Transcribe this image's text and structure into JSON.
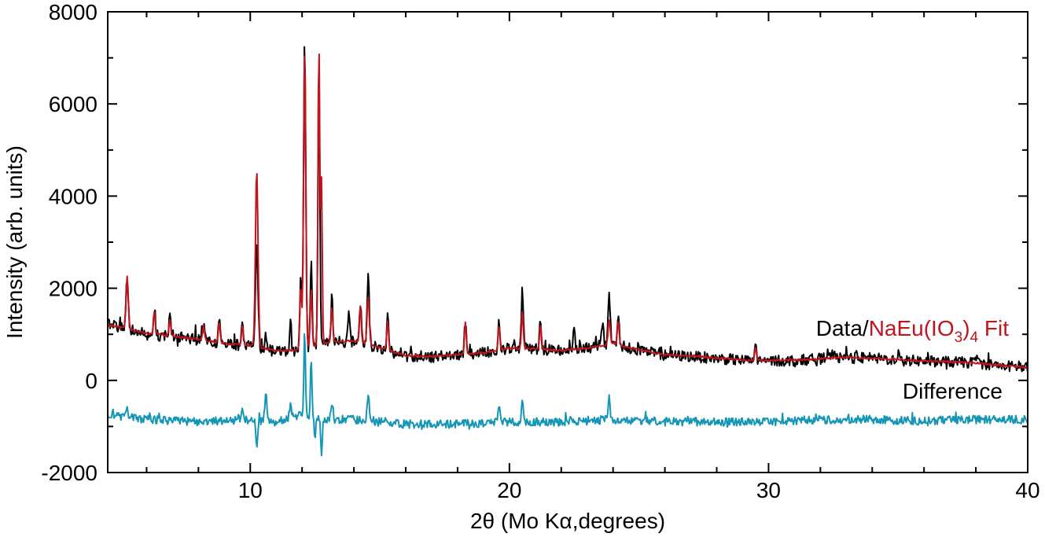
{
  "chart_data": {
    "type": "line",
    "title": "",
    "xlabel": "2θ (Mo Kα,degrees)",
    "ylabel": "Intensity (arb. units)",
    "xlim": [
      4.5,
      40
    ],
    "ylim": [
      -2000,
      8000
    ],
    "x_ticks": [
      10,
      20,
      30,
      40
    ],
    "y_ticks": [
      -2000,
      0,
      2000,
      4000,
      6000,
      8000
    ],
    "x_minor_step": 2,
    "y_minor_step": 1000,
    "grid": false,
    "legend": {
      "placement": "right",
      "data_label": "Data/",
      "fit_label_main": "NaEu(IO",
      "fit_sub_1": "3",
      "fit_close": ")",
      "fit_sub_2": "4",
      "fit_suffix": " Fit",
      "difference_label": "Difference"
    },
    "colors": {
      "data": "#000000",
      "fit": "#c0141e",
      "difference": "#1596b4"
    },
    "series": [
      {
        "name": "Data",
        "color": "#000000",
        "baseline": [
          [
            4.5,
            1250
          ],
          [
            5,
            1150
          ],
          [
            6,
            1000
          ],
          [
            7,
            950
          ],
          [
            8,
            880
          ],
          [
            9,
            800
          ],
          [
            10,
            750
          ],
          [
            11,
            620
          ],
          [
            11.8,
            650
          ],
          [
            13,
            800
          ],
          [
            14,
            850
          ],
          [
            15,
            700
          ],
          [
            16,
            520
          ],
          [
            17,
            500
          ],
          [
            18,
            560
          ],
          [
            19,
            600
          ],
          [
            20,
            700
          ],
          [
            21,
            680
          ],
          [
            22,
            650
          ],
          [
            23,
            700
          ],
          [
            24,
            800
          ],
          [
            25,
            650
          ],
          [
            26,
            550
          ],
          [
            27,
            520
          ],
          [
            28,
            480
          ],
          [
            29,
            430
          ],
          [
            30,
            420
          ],
          [
            31,
            430
          ],
          [
            32,
            470
          ],
          [
            33,
            500
          ],
          [
            34,
            480
          ],
          [
            35,
            440
          ],
          [
            36,
            420
          ],
          [
            37,
            400
          ],
          [
            38,
            380
          ],
          [
            39,
            320
          ],
          [
            40,
            270
          ]
        ],
        "peaks": [
          [
            5.25,
            2250,
            0.06
          ],
          [
            6.3,
            1600,
            0.05
          ],
          [
            6.9,
            1350,
            0.05
          ],
          [
            8.2,
            1200,
            0.05
          ],
          [
            8.8,
            1300,
            0.05
          ],
          [
            9.7,
            1250,
            0.05
          ],
          [
            10.25,
            3000,
            0.07
          ],
          [
            10.6,
            1000,
            0.05
          ],
          [
            11.55,
            1300,
            0.05
          ],
          [
            11.95,
            2200,
            0.05
          ],
          [
            12.1,
            7400,
            0.06
          ],
          [
            12.35,
            2600,
            0.05
          ],
          [
            12.65,
            6800,
            0.05
          ],
          [
            13.15,
            1800,
            0.05
          ],
          [
            13.8,
            1500,
            0.05
          ],
          [
            14.25,
            1700,
            0.05
          ],
          [
            14.55,
            2250,
            0.06
          ],
          [
            15.3,
            1400,
            0.05
          ],
          [
            18.3,
            1300,
            0.05
          ],
          [
            19.6,
            1350,
            0.05
          ],
          [
            20.5,
            2000,
            0.05
          ],
          [
            21.2,
            1300,
            0.05
          ],
          [
            22.5,
            1100,
            0.05
          ],
          [
            23.6,
            1300,
            0.05
          ],
          [
            23.85,
            1800,
            0.06
          ],
          [
            24.2,
            1400,
            0.05
          ],
          [
            29.5,
            800,
            0.05
          ],
          [
            32.5,
            600,
            0.05
          ],
          [
            35,
            620,
            0.05
          ],
          [
            38,
            550,
            0.05
          ]
        ],
        "noise": 120
      },
      {
        "name": "NaEu(IO3)4 Fit",
        "color": "#c0141e",
        "baseline": [
          [
            4.5,
            1200
          ],
          [
            5,
            1150
          ],
          [
            6,
            1020
          ],
          [
            7,
            960
          ],
          [
            8,
            890
          ],
          [
            9,
            800
          ],
          [
            10,
            760
          ],
          [
            11,
            640
          ],
          [
            11.8,
            660
          ],
          [
            13,
            820
          ],
          [
            14,
            860
          ],
          [
            15,
            720
          ],
          [
            16,
            540
          ],
          [
            17,
            510
          ],
          [
            18,
            560
          ],
          [
            19,
            600
          ],
          [
            20,
            700
          ],
          [
            21,
            680
          ],
          [
            22,
            650
          ],
          [
            23,
            700
          ],
          [
            24,
            790
          ],
          [
            25,
            660
          ],
          [
            26,
            560
          ],
          [
            27,
            530
          ],
          [
            28,
            490
          ],
          [
            29,
            440
          ],
          [
            30,
            430
          ],
          [
            31,
            440
          ],
          [
            32,
            470
          ],
          [
            33,
            500
          ],
          [
            34,
            480
          ],
          [
            35,
            450
          ],
          [
            36,
            420
          ],
          [
            37,
            400
          ],
          [
            38,
            380
          ],
          [
            39,
            320
          ],
          [
            40,
            280
          ]
        ],
        "peaks": [
          [
            5.25,
            2250,
            0.06
          ],
          [
            6.3,
            1500,
            0.05
          ],
          [
            6.9,
            1300,
            0.05
          ],
          [
            8.2,
            1200,
            0.05
          ],
          [
            8.8,
            1250,
            0.05
          ],
          [
            9.7,
            1200,
            0.05
          ],
          [
            10.25,
            4550,
            0.07
          ],
          [
            11.95,
            2000,
            0.05
          ],
          [
            12.1,
            7200,
            0.06
          ],
          [
            12.35,
            2000,
            0.05
          ],
          [
            12.65,
            7300,
            0.05
          ],
          [
            12.75,
            4300,
            0.04
          ],
          [
            13.15,
            1600,
            0.05
          ],
          [
            14.25,
            1600,
            0.05
          ],
          [
            14.55,
            1800,
            0.06
          ],
          [
            15.3,
            1300,
            0.05
          ],
          [
            18.3,
            1250,
            0.05
          ],
          [
            19.6,
            1200,
            0.05
          ],
          [
            20.5,
            1500,
            0.05
          ],
          [
            21.2,
            1200,
            0.05
          ],
          [
            23.85,
            1300,
            0.06
          ],
          [
            24.2,
            1300,
            0.05
          ],
          [
            29.5,
            700,
            0.05
          ]
        ],
        "noise": 20
      },
      {
        "name": "Difference",
        "color": "#1596b4",
        "baseline": [
          [
            4.5,
            -750
          ],
          [
            6,
            -850
          ],
          [
            8,
            -900
          ],
          [
            10,
            -850
          ],
          [
            11,
            -900
          ],
          [
            12,
            -750
          ],
          [
            13,
            -850
          ],
          [
            14,
            -850
          ],
          [
            16,
            -950
          ],
          [
            18,
            -950
          ],
          [
            20,
            -900
          ],
          [
            22,
            -900
          ],
          [
            24,
            -850
          ],
          [
            26,
            -900
          ],
          [
            28,
            -900
          ],
          [
            30,
            -900
          ],
          [
            32,
            -850
          ],
          [
            34,
            -850
          ],
          [
            36,
            -880
          ],
          [
            38,
            -850
          ],
          [
            40,
            -850
          ]
        ],
        "peaks": [
          [
            5.25,
            -550,
            0.05
          ],
          [
            9.7,
            -550,
            0.05
          ],
          [
            10.25,
            -1400,
            0.05
          ],
          [
            10.6,
            -250,
            0.05
          ],
          [
            11.55,
            -500,
            0.05
          ],
          [
            12.1,
            1150,
            0.04
          ],
          [
            12.35,
            500,
            0.04
          ],
          [
            12.5,
            -1300,
            0.04
          ],
          [
            12.75,
            -1550,
            0.04
          ],
          [
            13.15,
            -500,
            0.05
          ],
          [
            14.55,
            -250,
            0.05
          ],
          [
            19.6,
            -500,
            0.05
          ],
          [
            20.5,
            -350,
            0.05
          ],
          [
            23.85,
            -400,
            0.05
          ]
        ],
        "noise": 90
      }
    ]
  }
}
